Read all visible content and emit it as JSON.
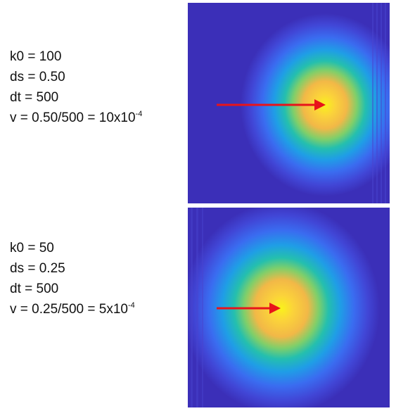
{
  "panels": [
    {
      "k0": "k0 = 100",
      "ds": "ds = 0.50",
      "dt": "dt = 500",
      "v_prefix": "v = 0.50/500 = 10x10",
      "v_exponent": "-4"
    },
    {
      "k0": "k0 = 50",
      "ds": "ds = 0.25",
      "dt": "dt = 500",
      "v_prefix": "v = 0.25/500 = 5x10",
      "v_exponent": "-4"
    }
  ],
  "colors": {
    "background": "#3b2fb8",
    "arrow": "#e8141a",
    "peak": "#f8f01a"
  }
}
